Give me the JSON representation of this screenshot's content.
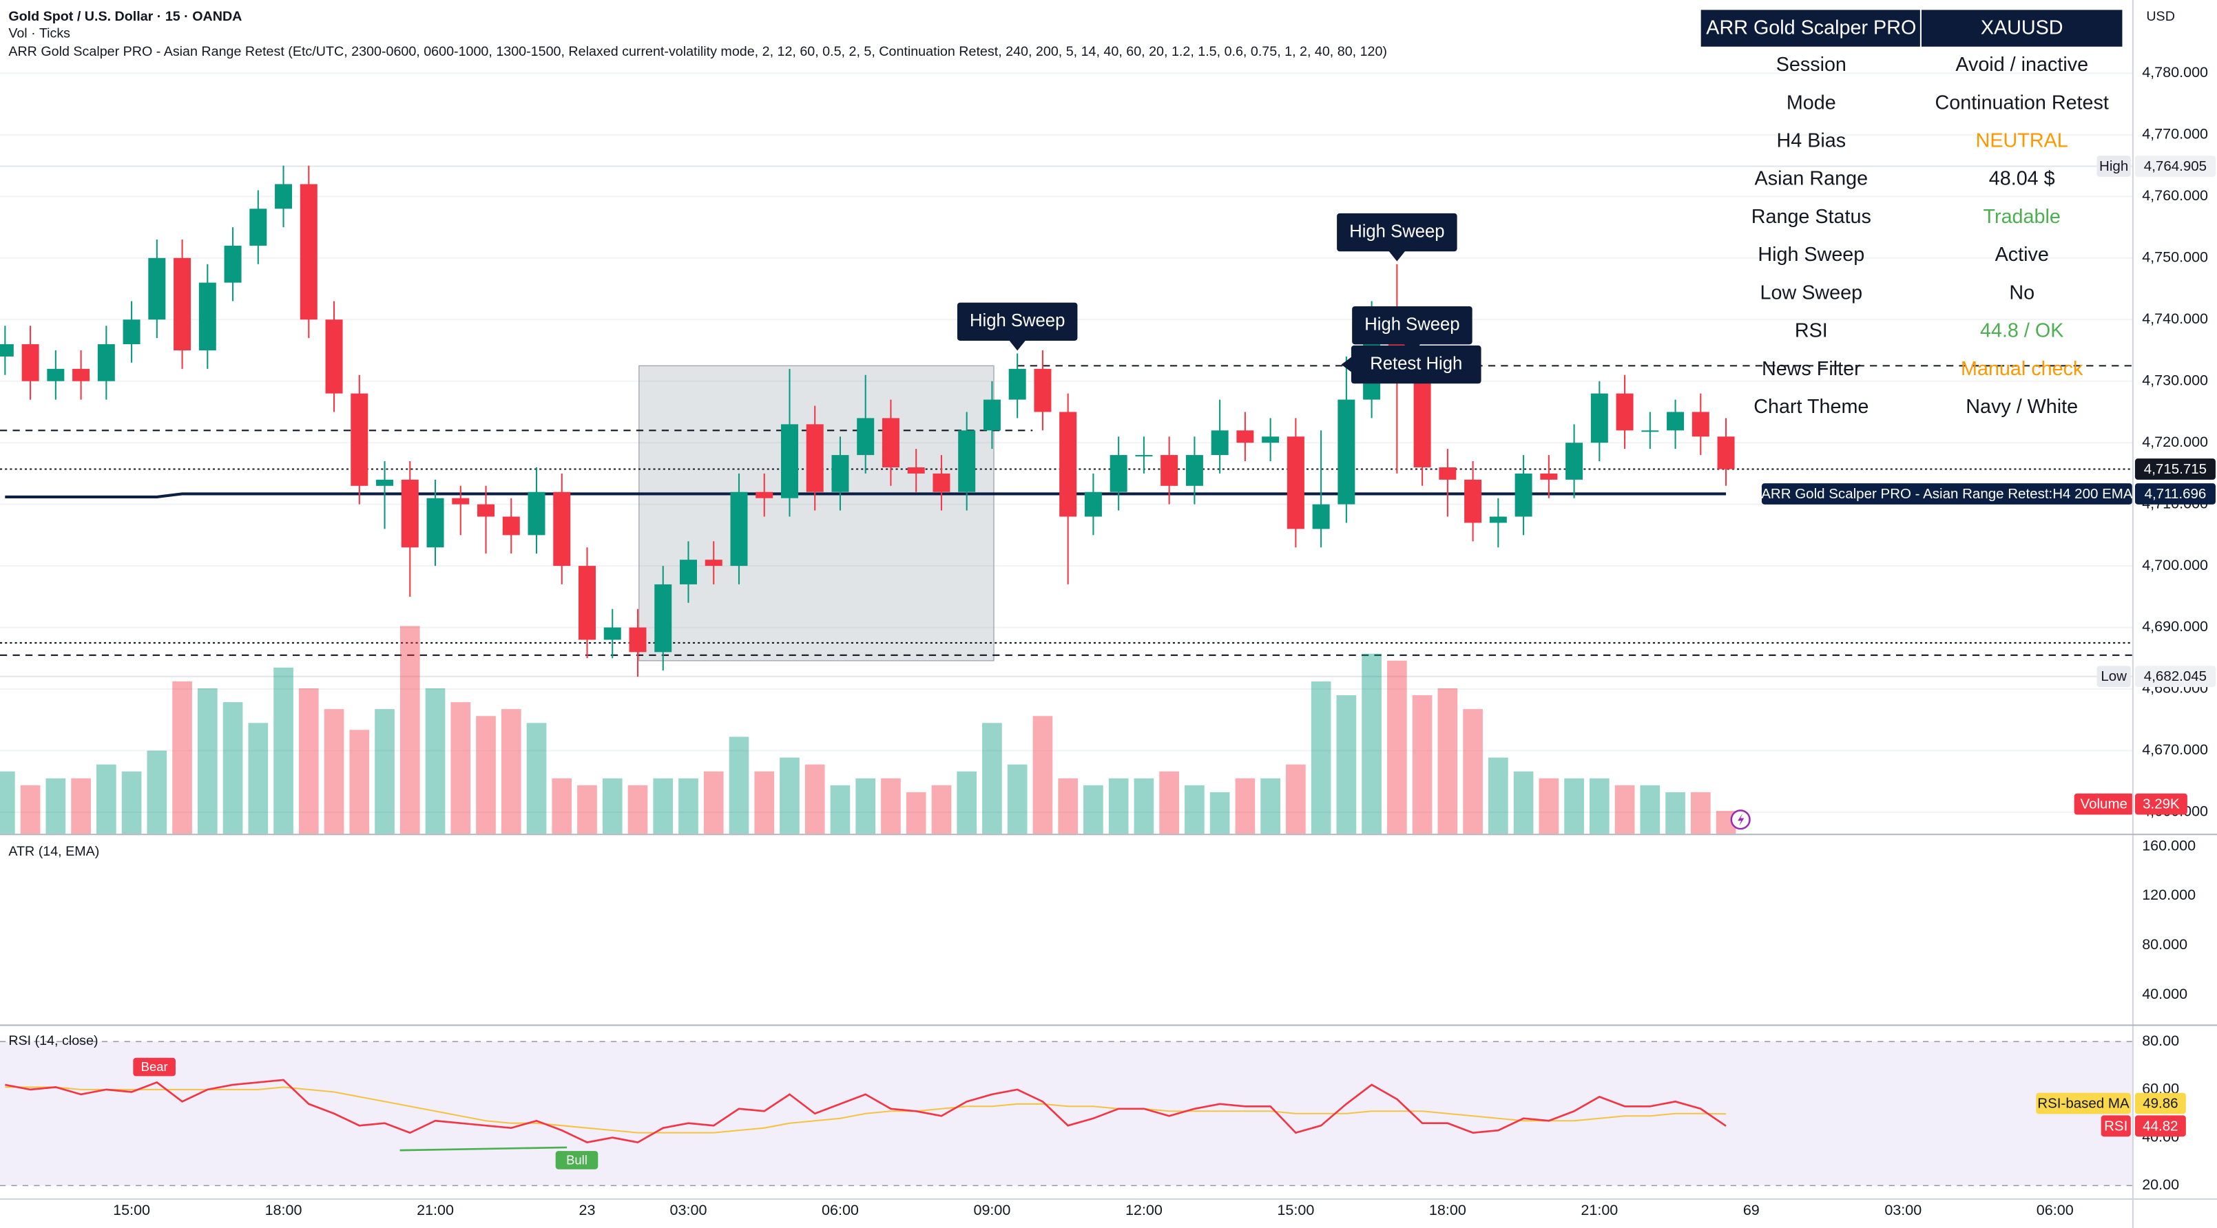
{
  "chart_data": [
    {
      "type": "candlestick",
      "title": "Gold Spot / U.S. Dollar · 15 · OANDA",
      "subtitle": "Vol · Ticks",
      "indicator": "ARR Gold Scalper PRO - Asian Range Retest (Etc/UTC, 2300-0600, 0600-1000, 1300-1500, Relaxed current-volatility mode, 2, 12, 60, 0.5, 2, 5, Continuation Retest, 240, 200, 5, 14, 40, 60, 20, 1.2, 1.5, 0.6, 0.75, 1, 2, 40, 80, 120)",
      "currency": "USD",
      "open": [
        4734,
        4736,
        4730,
        4732,
        4730,
        4736,
        4740,
        4750,
        4735,
        4746,
        4752,
        4758,
        4762,
        4740,
        4728,
        4713,
        4714,
        4703,
        4711,
        4710,
        4708,
        4705,
        4712,
        4700,
        4688,
        4690,
        4686,
        4697,
        4701,
        4700,
        4712,
        4711,
        4723,
        4712,
        4718,
        4724,
        4716,
        4715,
        4712,
        4722,
        4727,
        4732,
        4725,
        4708,
        4712,
        4718,
        4718,
        4713,
        4718,
        4722,
        4720,
        4721,
        4706,
        4710,
        4727,
        4740,
        4730,
        4716,
        4714,
        4707,
        4708,
        4715,
        4714,
        4720,
        4728,
        4722,
        4722,
        4725,
        4721
      ],
      "high": [
        4739,
        4739,
        4735,
        4735,
        4739,
        4743,
        4753,
        4753,
        4749,
        4755,
        4761,
        4765,
        4765,
        4743,
        4731,
        4717,
        4717,
        4714,
        4713,
        4713,
        4711,
        4716,
        4715,
        4703,
        4693,
        4693,
        4700,
        4704,
        4704,
        4715,
        4715,
        4732,
        4726,
        4721,
        4731,
        4727,
        4719,
        4718,
        4725,
        4730,
        4734.5,
        4735,
        4728,
        4715,
        4721,
        4721,
        4721,
        4721,
        4727,
        4725,
        4724,
        4724,
        4722,
        4734,
        4743,
        4749,
        4733,
        4719,
        4717,
        4711,
        4718,
        4718,
        4723,
        4730,
        4731,
        4725,
        4727,
        4728,
        4724
      ],
      "low": [
        4731,
        4727,
        4727,
        4727,
        4727,
        4733,
        4737,
        4732,
        4732,
        4743,
        4749,
        4755,
        4737,
        4725,
        4710,
        4706,
        4695,
        4700,
        4705,
        4702,
        4702,
        4702,
        4697,
        4685,
        4685,
        4682,
        4683,
        4694,
        4697,
        4697,
        4708,
        4708,
        4709,
        4709,
        4715,
        4713,
        4712,
        4709,
        4709,
        4719,
        4724,
        4722,
        4697,
        4705,
        4709,
        4715,
        4710,
        4710,
        4715,
        4717,
        4717,
        4703,
        4703,
        4707,
        4724,
        4715,
        4713,
        4708,
        4704,
        4703,
        4705,
        4711,
        4711,
        4717,
        4719,
        4719,
        4719,
        4718,
        4713
      ],
      "close": [
        4736,
        4730,
        4732,
        4730,
        4736,
        4740,
        4750,
        4735,
        4746,
        4752,
        4758,
        4762,
        4740,
        4728,
        4713,
        4714,
        4703,
        4711,
        4710,
        4708,
        4705,
        4712,
        4700,
        4688,
        4690,
        4686,
        4697,
        4701,
        4700,
        4712,
        4711,
        4723,
        4712,
        4718,
        4724,
        4716,
        4715,
        4712,
        4722,
        4727,
        4732,
        4725,
        4708,
        4712,
        4718,
        4718,
        4713,
        4718,
        4722,
        4720,
        4721,
        4706,
        4710,
        4727,
        4740,
        4730,
        4716,
        4714,
        4707,
        4708,
        4715,
        4714,
        4720,
        4728,
        4722,
        4722,
        4725,
        4721,
        4715.715
      ],
      "up_color": "#089981",
      "down_color": "#f23645",
      "xlim": [
        -0.2,
        84.05
      ],
      "xticks": [
        {
          "value": 5,
          "label": "15:00"
        },
        {
          "value": 11,
          "label": "18:00"
        },
        {
          "value": 17,
          "label": "21:00"
        },
        23,
        {
          "value": 27,
          "label": "03:00"
        },
        {
          "value": 33,
          "label": "06:00"
        },
        {
          "value": 39,
          "label": "09:00"
        },
        {
          "value": 45,
          "label": "12:00"
        },
        {
          "value": 51,
          "label": "15:00"
        },
        {
          "value": 57,
          "label": "18:00"
        },
        {
          "value": 63,
          "label": "21:00"
        },
        69,
        {
          "value": 75,
          "label": "03:00"
        },
        {
          "value": 81,
          "label": "06:00"
        }
      ],
      "ylim": [
        4656.5,
        4791.9
      ],
      "yticks": [
        {
          "value": 4780,
          "label": "4,780.000"
        },
        {
          "value": 4770,
          "label": "4,770.000"
        },
        {
          "value": 4760,
          "label": "4,760.000"
        },
        {
          "value": 4750,
          "label": "4,750.000"
        },
        {
          "value": 4740,
          "label": "4,740.000"
        },
        {
          "value": 4730,
          "label": "4,730.000"
        },
        {
          "value": 4720,
          "label": "4,720.000"
        },
        {
          "value": 4710,
          "label": "4,710.000"
        },
        {
          "value": 4700,
          "label": "4,700.000"
        },
        {
          "value": 4690,
          "label": "4,690.000"
        },
        {
          "value": 4680,
          "label": "4,680.000"
        },
        {
          "value": 4670,
          "label": "4,670.000"
        },
        {
          "value": 4660,
          "label": "4,660.000"
        }
      ],
      "grid": true,
      "volume": {
        "name": "Volume",
        "values": [
          9,
          7,
          8,
          8,
          10,
          9,
          12,
          22,
          21,
          19,
          16,
          24,
          21,
          18,
          15,
          18,
          30,
          21,
          19,
          17,
          18,
          16,
          8,
          7,
          8,
          7,
          8,
          8,
          9,
          14,
          9,
          11,
          10,
          7,
          8,
          8,
          6,
          7,
          9,
          16,
          10,
          17,
          8,
          7,
          8,
          8,
          9,
          7,
          6,
          8,
          8,
          10,
          22,
          20,
          26,
          25,
          20,
          21,
          18,
          11,
          9,
          8,
          8,
          8,
          7,
          7,
          6,
          6,
          3.29
        ],
        "value_label": "3.29K",
        "ylim": [
          0,
          40
        ],
        "color": "#f23645"
      },
      "ema": {
        "name": "ARR Gold Scalper PRO - Asian Range Retest:H4 200 EMA",
        "color": "#0b1f44",
        "values": [
          4711.2,
          4711.2,
          4711.2,
          4711.2,
          4711.2,
          4711.2,
          4711.2,
          4711.7,
          4711.7,
          4711.7,
          4711.7,
          4711.7,
          4711.7,
          4711.7,
          4711.7,
          4711.7,
          4711.7,
          4711.7,
          4711.7,
          4711.7,
          4711.7,
          4711.7,
          4711.7,
          4711.7,
          4711.7,
          4711.7,
          4711.7,
          4711.7,
          4711.7,
          4711.7,
          4711.7,
          4711.7,
          4711.7,
          4711.7,
          4711.7,
          4711.7,
          4711.7,
          4711.7,
          4711.7,
          4711.7,
          4711.7,
          4711.7,
          4711.7,
          4711.7,
          4711.7,
          4711.7,
          4711.7,
          4711.7,
          4711.7,
          4711.7,
          4711.7,
          4711.7,
          4711.7,
          4711.7,
          4711.7,
          4711.7,
          4711.7,
          4711.7,
          4711.7,
          4711.7,
          4711.7,
          4711.7,
          4711.7,
          4711.7,
          4711.7,
          4711.7,
          4711.7,
          4711.7,
          4711.696
        ],
        "value_label": "4,711.696"
      },
      "last_price": {
        "value": 4715.715,
        "label": "4,715.715"
      },
      "high_mark": {
        "name": "High",
        "value": 4764.905,
        "label": "4,764.905"
      },
      "low_mark": {
        "name": "Low",
        "value": 4682.045,
        "label": "4,682.045"
      },
      "levels": [
        {
          "value": 4722,
          "style": "dashed",
          "from": -0.2,
          "to": 40.6
        },
        {
          "value": 4732.5,
          "style": "dashed",
          "from": 40,
          "to": 84.05
        },
        {
          "value": 4687.5,
          "style": "dotted",
          "from": -0.2,
          "to": 84.05
        },
        {
          "value": 4685.5,
          "style": "dashed",
          "from": -0.2,
          "to": 84.05
        }
      ],
      "range_box": {
        "from": 25.05,
        "to": 39.07,
        "high": 4732.5,
        "low": 4684.6
      },
      "annotations": [
        {
          "label": "High Sweep",
          "at": 40,
          "value": 4734.5,
          "style": "down"
        },
        {
          "label": "High Sweep",
          "at": 55,
          "value": 4749,
          "style": "down"
        },
        {
          "label": "High Sweep",
          "at": 55.6,
          "value": 4733.9,
          "style": "down"
        },
        {
          "label": "Retest High",
          "at": 52.8,
          "value": 4732.7,
          "style": "left"
        }
      ],
      "info_table": {
        "header": [
          "ARR Gold Scalper PRO",
          "XAUUSD"
        ],
        "rows": [
          [
            "Session",
            "Avoid / inactive"
          ],
          [
            "Mode",
            "Continuation Retest"
          ],
          [
            "H4 Bias",
            "NEUTRAL"
          ],
          [
            "Asian Range",
            "48.04 $"
          ],
          [
            "Range Status",
            "Tradable"
          ],
          [
            "High Sweep",
            "Active"
          ],
          [
            "Low Sweep",
            "No"
          ],
          [
            "RSI",
            "44.8 / OK"
          ],
          [
            "News Filter",
            "Manual check"
          ],
          [
            "Chart Theme",
            "Navy / White"
          ]
        ],
        "value_colors": [
          "#131722",
          "#131722",
          "#ff9800",
          "#131722",
          "#4caf50",
          "#131722",
          "#131722",
          "#4caf50",
          "#ff9800",
          "#131722"
        ]
      }
    },
    {
      "type": "line",
      "title": "ATR (14, EMA)",
      "ylim": [
        16,
        169.1
      ],
      "yticks": [
        {
          "value": 160,
          "label": "160.000"
        },
        {
          "value": 120,
          "label": "120.000"
        },
        {
          "value": 80,
          "label": "80.000"
        },
        {
          "value": 40,
          "label": "40.000"
        }
      ]
    },
    {
      "type": "line",
      "title": "RSI (14, close)",
      "ylim": [
        14.7,
        86.5
      ],
      "yticks": [
        {
          "value": 80,
          "label": "80.00"
        },
        {
          "value": 60,
          "label": "60.00"
        },
        {
          "value": 40,
          "label": "40.00"
        },
        {
          "value": 20,
          "label": "20.00"
        }
      ],
      "bands": [
        80,
        20
      ],
      "band_color": "#f2eefa",
      "series": [
        {
          "name": "RSI",
          "color": "#f23645",
          "values": [
            62,
            60,
            61,
            58,
            60,
            59,
            63,
            55,
            60,
            62,
            63,
            64,
            54,
            50,
            45,
            46,
            42,
            47,
            46,
            45,
            44,
            47,
            43,
            38,
            40,
            38,
            44,
            46,
            45,
            52,
            51,
            58,
            50,
            54,
            58,
            52,
            51,
            49,
            55,
            58,
            60,
            55,
            45,
            48,
            52,
            52,
            49,
            52,
            54,
            53,
            53,
            42,
            45,
            54,
            62,
            56,
            46,
            46,
            42,
            43,
            48,
            47,
            51,
            57,
            53,
            53,
            55,
            52,
            44.82
          ]
        },
        {
          "name": "RSI-based MA",
          "color": "#f5c342",
          "values": [
            61,
            61,
            61,
            60,
            60,
            60,
            60,
            60,
            60,
            60,
            60,
            61,
            60,
            59,
            57,
            55,
            53,
            51,
            49,
            47,
            46,
            46,
            45,
            44,
            43,
            42,
            42,
            42,
            42,
            43,
            44,
            46,
            47,
            48,
            50,
            51,
            51,
            52,
            53,
            53,
            54,
            54,
            53,
            53,
            52,
            52,
            51,
            51,
            51,
            51,
            51,
            50,
            50,
            50,
            51,
            51,
            51,
            50,
            49,
            48,
            47,
            47,
            47,
            48,
            49,
            49,
            50,
            50,
            49.86
          ]
        }
      ],
      "divergences": [
        {
          "label": "Bear",
          "at": 5.9,
          "value": 69.4,
          "color": "#f23645"
        },
        {
          "label": "Bull",
          "from": 15.6,
          "to": 22.2,
          "values": [
            34.7,
            35.9
          ],
          "color": "#4caf50"
        }
      ]
    }
  ]
}
